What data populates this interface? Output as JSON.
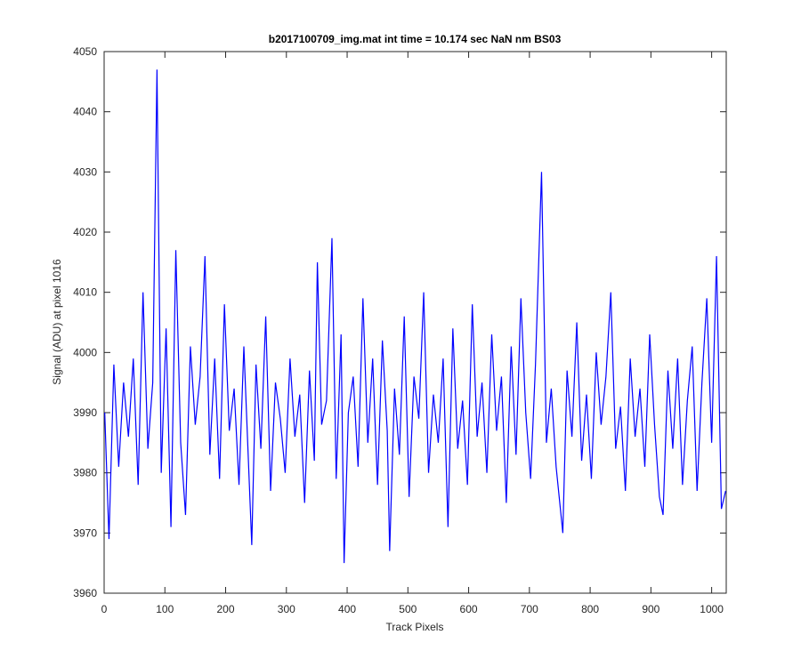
{
  "chart_data": {
    "type": "line",
    "title": "b2017100709_img.mat int time = 10.174 sec  NaN nm BS03",
    "x_label": "Track Pixels",
    "y_label": "Signal (ADU) at pixel 1016",
    "x": [
      1,
      8,
      16,
      24,
      32,
      40,
      48,
      56,
      64,
      72,
      80,
      87,
      94,
      102,
      110,
      118,
      126,
      134,
      142,
      150,
      158,
      166,
      174,
      182,
      190,
      198,
      206,
      214,
      222,
      230,
      243,
      250,
      258,
      266,
      274,
      282,
      290,
      298,
      306,
      314,
      322,
      330,
      338,
      346,
      351,
      358,
      366,
      375,
      382,
      390,
      395,
      402,
      410,
      418,
      426,
      434,
      442,
      450,
      458,
      466,
      470,
      478,
      486,
      494,
      502,
      510,
      518,
      526,
      534,
      542,
      550,
      558,
      566,
      574,
      582,
      590,
      598,
      606,
      614,
      622,
      630,
      638,
      646,
      654,
      662,
      670,
      678,
      686,
      694,
      702,
      710,
      720,
      728,
      736,
      744,
      755,
      762,
      770,
      778,
      786,
      794,
      802,
      810,
      818,
      826,
      834,
      842,
      850,
      858,
      866,
      874,
      882,
      890,
      898,
      906,
      914,
      920,
      928,
      936,
      944,
      952,
      960,
      968,
      976,
      984,
      992,
      1000,
      1008,
      1016,
      1023
    ],
    "series": [
      {
        "color": "#0000ff",
        "values": [
          3990,
          3969,
          3998,
          3981,
          3995,
          3986,
          3999,
          3978,
          4010,
          3984,
          3995,
          4047,
          3980,
          4004,
          3971,
          4017,
          3985,
          3973,
          4001,
          3988,
          3996,
          4016,
          3983,
          3999,
          3979,
          4008,
          3987,
          3994,
          3978,
          4001,
          3968,
          3998,
          3984,
          4006,
          3977,
          3995,
          3989,
          3980,
          3999,
          3986,
          3993,
          3975,
          3997,
          3982,
          4015,
          3988,
          3992,
          4019,
          3979,
          4003,
          3965,
          3990,
          3996,
          3981,
          4009,
          3985,
          3999,
          3978,
          4002,
          3987,
          3967,
          3994,
          3983,
          4006,
          3976,
          3996,
          3989,
          4010,
          3980,
          3993,
          3985,
          3999,
          3971,
          4004,
          3984,
          3992,
          3978,
          4008,
          3986,
          3995,
          3980,
          4003,
          3987,
          3996,
          3975,
          4001,
          3983,
          4009,
          3990,
          3979,
          3998,
          4030,
          3985,
          3994,
          3981,
          3970,
          3997,
          3986,
          4005,
          3982,
          3993,
          3979,
          4000,
          3988,
          3996,
          4010,
          3984,
          3991,
          3977,
          3999,
          3986,
          3994,
          3981,
          4003,
          3988,
          3976,
          3973,
          3997,
          3984,
          3999,
          3978,
          3992,
          4001,
          3977,
          3995,
          4009,
          3985,
          4016,
          3974,
          3977
        ]
      }
    ],
    "xlim": [
      0,
      1024
    ],
    "ylim": [
      3960,
      4050
    ],
    "xticks": [
      0,
      100,
      200,
      300,
      400,
      500,
      600,
      700,
      800,
      900,
      1000
    ],
    "yticks": [
      3960,
      3970,
      3980,
      3990,
      4000,
      4010,
      4020,
      4030,
      4040,
      4050
    ]
  }
}
